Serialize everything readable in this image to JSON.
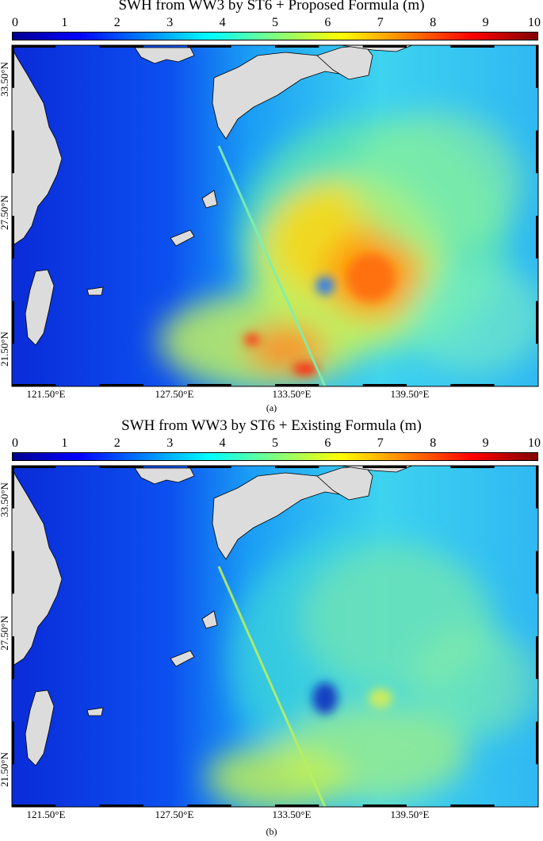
{
  "panels": [
    {
      "title": "SWH from WW3 by ST6 + Proposed Formula (m)",
      "caption": "(a)",
      "variant": "proposed"
    },
    {
      "title": "SWH from WW3 by ST6 + Existing Formula (m)",
      "caption": "(b)",
      "variant": "existing"
    }
  ],
  "colorbar": {
    "ticks": [
      "0",
      "1",
      "2",
      "3",
      "4",
      "5",
      "6",
      "7",
      "8",
      "9",
      "10"
    ],
    "min": 0,
    "max": 10,
    "colormap": [
      "#00008f",
      "#0000ff",
      "#0080ff",
      "#00ffff",
      "#80ff80",
      "#ffff00",
      "#ff8000",
      "#ff0000",
      "#800000"
    ]
  },
  "axes": {
    "lat_labels": [
      "33.50°N",
      "27.50°N",
      "21.50°N"
    ],
    "lon_labels": [
      "121.50°E",
      "127.50°E",
      "133.50°E",
      "139.50°E"
    ]
  },
  "colors": {
    "land": "#dcdcdc",
    "frame": "#000000"
  }
}
